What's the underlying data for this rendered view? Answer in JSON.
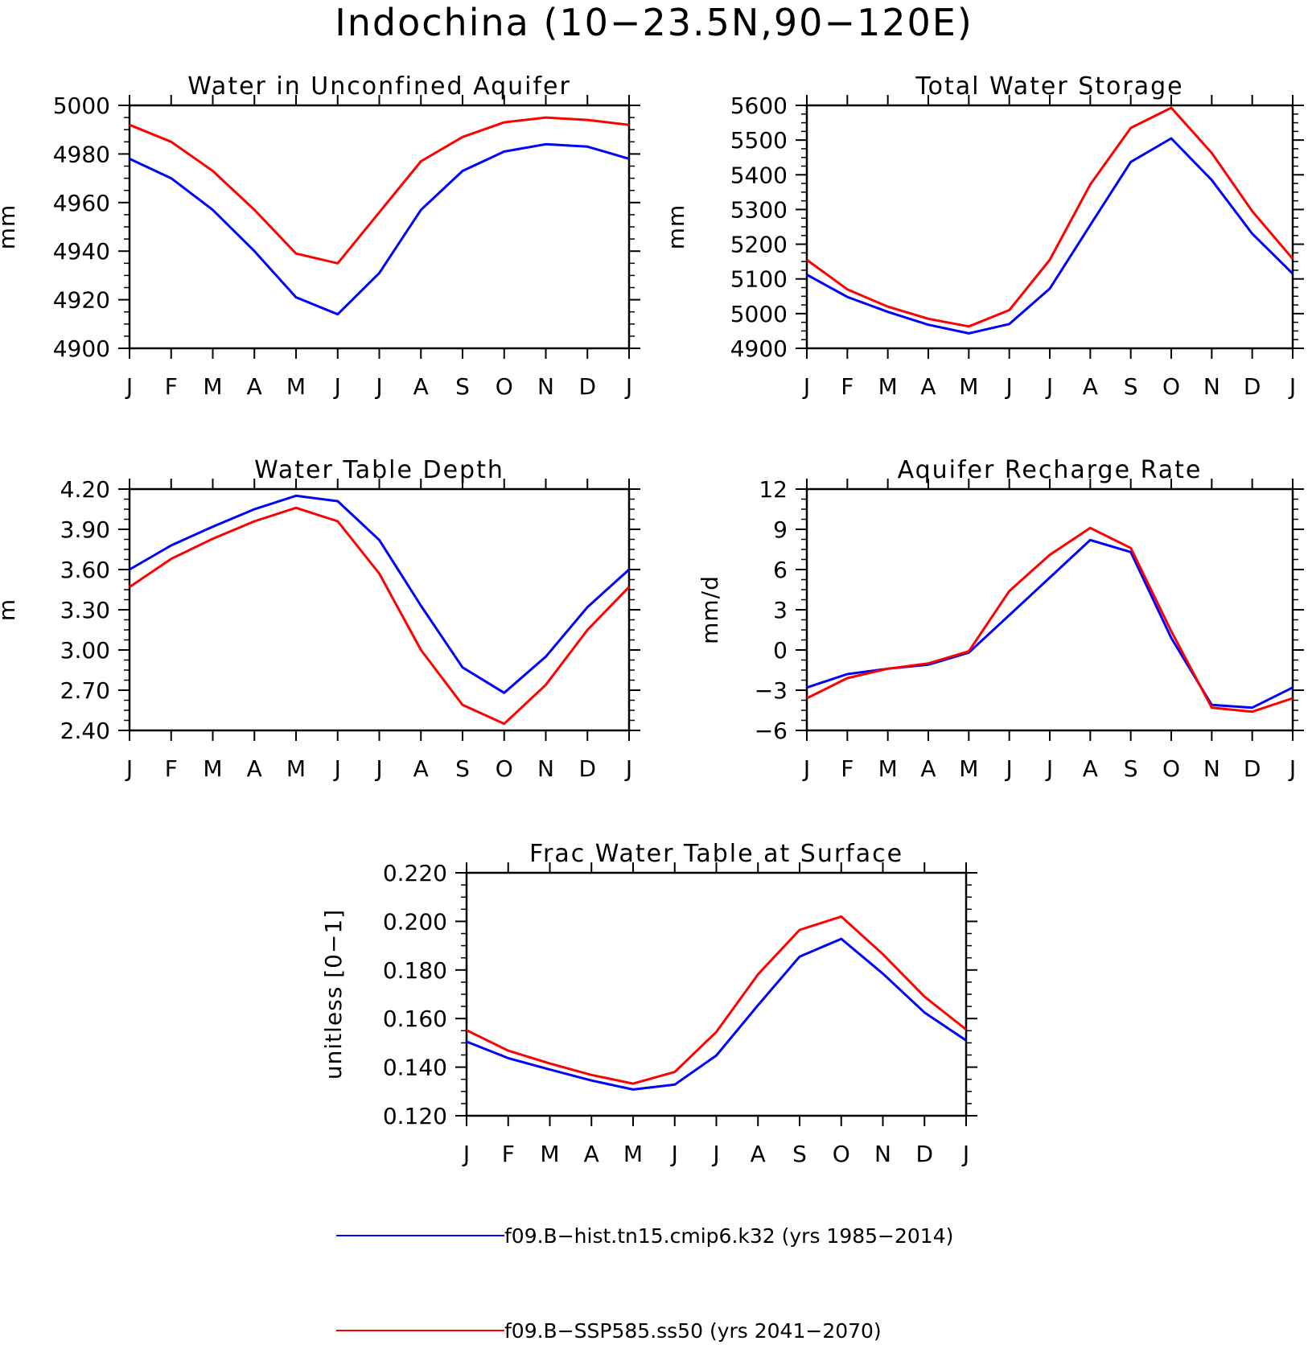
{
  "figure": {
    "title": "Indochina (10−23.5N,90−120E)"
  },
  "legend": [
    {
      "label": "f09.B−hist.tn15.cmip6.k32 (yrs 1985−2014)",
      "color": "#0000ff"
    },
    {
      "label": "f09.B−SSP585.ss50 (yrs 2041−2070)",
      "color": "#ff0000"
    }
  ],
  "colors": {
    "hist": "#0000ff",
    "ssp585": "#ff0000",
    "axis": "#000000"
  },
  "chart_data": [
    {
      "type": "line",
      "title": "Water in Unconfined Aquifer",
      "xlabel": "",
      "ylabel": "mm",
      "x": [
        "J",
        "F",
        "M",
        "A",
        "M",
        "J",
        "J",
        "A",
        "S",
        "O",
        "N",
        "D",
        "J"
      ],
      "ylim": [
        4900,
        5000
      ],
      "yticks": [
        4900,
        4920,
        4940,
        4960,
        4980,
        5000
      ],
      "ytick_labels": [
        "4900",
        "4920",
        "4940",
        "4960",
        "4980",
        "5000"
      ],
      "series": [
        {
          "values": [
            4978,
            4970,
            4957,
            4940,
            4921,
            4914,
            4931,
            4957,
            4973,
            4981,
            4984,
            4983,
            4978
          ]
        },
        {
          "values": [
            4992,
            4985,
            4973,
            4957,
            4939,
            4935,
            4956,
            4977,
            4987,
            4993,
            4995,
            4994,
            4992
          ]
        }
      ]
    },
    {
      "type": "line",
      "title": "Total Water Storage",
      "xlabel": "",
      "ylabel": "mm",
      "x": [
        "J",
        "F",
        "M",
        "A",
        "M",
        "J",
        "J",
        "A",
        "S",
        "O",
        "N",
        "D",
        "J"
      ],
      "ylim": [
        4900,
        5600
      ],
      "yticks": [
        4900,
        5000,
        5100,
        5200,
        5300,
        5400,
        5500,
        5600
      ],
      "ytick_labels": [
        "4900",
        "5000",
        "5100",
        "5200",
        "5300",
        "5400",
        "5500",
        "5600"
      ],
      "series": [
        {
          "values": [
            5112,
            5048,
            5005,
            4968,
            4943,
            4970,
            5072,
            5255,
            5437,
            5505,
            5385,
            5230,
            5115
          ]
        },
        {
          "values": [
            5155,
            5070,
            5020,
            4985,
            4963,
            5010,
            5155,
            5372,
            5535,
            5593,
            5463,
            5295,
            5158
          ]
        }
      ]
    },
    {
      "type": "line",
      "title": "Water Table Depth",
      "xlabel": "",
      "ylabel": "m",
      "x": [
        "J",
        "F",
        "M",
        "A",
        "M",
        "J",
        "J",
        "A",
        "S",
        "O",
        "N",
        "D",
        "J"
      ],
      "ylim": [
        2.4,
        4.2
      ],
      "yticks": [
        2.4,
        2.7,
        3.0,
        3.3,
        3.6,
        3.9,
        4.2
      ],
      "ytick_labels": [
        "2.40",
        "2.70",
        "3.00",
        "3.30",
        "3.60",
        "3.90",
        "4.20"
      ],
      "series": [
        {
          "values": [
            3.6,
            3.78,
            3.92,
            4.05,
            4.15,
            4.11,
            3.82,
            3.33,
            2.87,
            2.68,
            2.95,
            3.32,
            3.6
          ]
        },
        {
          "values": [
            3.47,
            3.68,
            3.83,
            3.96,
            4.06,
            3.96,
            3.57,
            3.0,
            2.59,
            2.45,
            2.74,
            3.15,
            3.47
          ]
        }
      ]
    },
    {
      "type": "line",
      "title": "Aquifer Recharge Rate",
      "xlabel": "",
      "ylabel": "mm/d",
      "x": [
        "J",
        "F",
        "M",
        "A",
        "M",
        "J",
        "J",
        "A",
        "S",
        "O",
        "N",
        "D",
        "J"
      ],
      "ylim": [
        -6,
        12
      ],
      "yticks": [
        -6,
        -3,
        0,
        3,
        6,
        9,
        12
      ],
      "ytick_labels": [
        "−6",
        "−3",
        "0",
        "3",
        "6",
        "9",
        "12"
      ],
      "series": [
        {
          "values": [
            -2.8,
            -1.8,
            -1.4,
            -1.1,
            -0.2,
            2.6,
            5.4,
            8.2,
            7.3,
            0.9,
            -4.1,
            -4.3,
            -2.8
          ]
        },
        {
          "values": [
            -3.6,
            -2.1,
            -1.4,
            -1.0,
            -0.1,
            4.4,
            7.1,
            9.1,
            7.6,
            1.4,
            -4.3,
            -4.6,
            -3.6
          ]
        }
      ]
    },
    {
      "type": "line",
      "title": "Frac Water Table at Surface",
      "xlabel": "",
      "ylabel": "unitless [0−1]",
      "x": [
        "J",
        "F",
        "M",
        "A",
        "M",
        "J",
        "J",
        "A",
        "S",
        "O",
        "N",
        "D",
        "J"
      ],
      "ylim": [
        0.12,
        0.22
      ],
      "yticks": [
        0.12,
        0.14,
        0.16,
        0.18,
        0.2,
        0.22
      ],
      "ytick_labels": [
        "0.120",
        "0.140",
        "0.160",
        "0.180",
        "0.200",
        "0.220"
      ],
      "series": [
        {
          "values": [
            0.1505,
            0.1437,
            0.139,
            0.1345,
            0.1308,
            0.1328,
            0.1448,
            0.1655,
            0.1855,
            0.1928,
            0.1785,
            0.1625,
            0.151
          ]
        },
        {
          "values": [
            0.1552,
            0.1468,
            0.1415,
            0.1368,
            0.1332,
            0.138,
            0.1545,
            0.1782,
            0.1965,
            0.202,
            0.1865,
            0.169,
            0.1555
          ]
        }
      ]
    }
  ]
}
